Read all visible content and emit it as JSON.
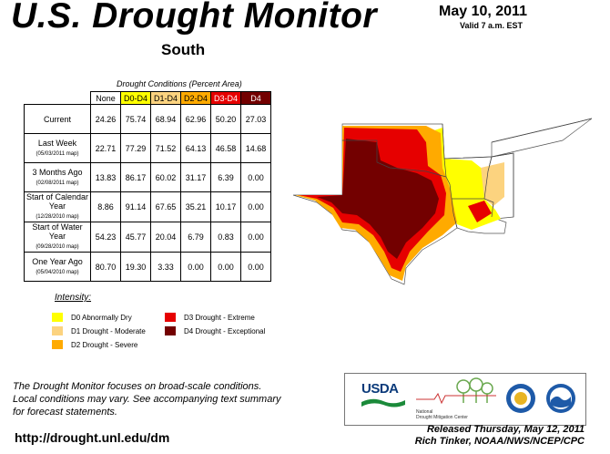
{
  "header": {
    "title": "U.S. Drought Monitor",
    "region": "South",
    "date": "May 10, 2011",
    "valid": "Valid 7 a.m. EST"
  },
  "table": {
    "caption": "Drought Conditions (Percent Area)",
    "columns": [
      "None",
      "D0-D4",
      "D1-D4",
      "D2-D4",
      "D3-D4",
      "D4"
    ],
    "column_colors": [
      "#ffffff",
      "#ffff00",
      "#fcd37f",
      "#ffaa00",
      "#e60000",
      "#730000"
    ],
    "rows": [
      {
        "label": "Current",
        "sub": "",
        "values": [
          "24.26",
          "75.74",
          "68.94",
          "62.96",
          "50.20",
          "27.03"
        ]
      },
      {
        "label": "Last Week",
        "sub": "(05/03/2011 map)",
        "values": [
          "22.71",
          "77.29",
          "71.52",
          "64.13",
          "46.58",
          "14.68"
        ]
      },
      {
        "label": "3 Months Ago",
        "sub": "(02/08/2011 map)",
        "values": [
          "13.83",
          "86.17",
          "60.02",
          "31.17",
          "6.39",
          "0.00"
        ]
      },
      {
        "label": "Start of Calendar Year",
        "sub": "(12/28/2010 map)",
        "values": [
          "8.86",
          "91.14",
          "67.65",
          "35.21",
          "10.17",
          "0.00"
        ]
      },
      {
        "label": "Start of Water Year",
        "sub": "(09/28/2010 map)",
        "values": [
          "54.23",
          "45.77",
          "20.04",
          "6.79",
          "0.83",
          "0.00"
        ]
      },
      {
        "label": "One Year Ago",
        "sub": "(05/04/2010 map)",
        "values": [
          "80.70",
          "19.30",
          "3.33",
          "0.00",
          "0.00",
          "0.00"
        ]
      }
    ]
  },
  "legend": {
    "title": "Intensity:",
    "items": [
      {
        "label": "D0 Abnormally Dry",
        "color": "#ffff00"
      },
      {
        "label": "D1 Drought - Moderate",
        "color": "#fcd37f"
      },
      {
        "label": "D2 Drought - Severe",
        "color": "#ffaa00"
      },
      {
        "label": "D3 Drought - Extreme",
        "color": "#e60000"
      },
      {
        "label": "D4 Drought - Exceptional",
        "color": "#730000"
      }
    ]
  },
  "note": {
    "line1": "The Drought Monitor focuses on broad-scale conditions.",
    "line2": "Local conditions may vary. See accompanying text summary",
    "line3": "for forecast statements."
  },
  "footer": {
    "url": "http://drought.unl.edu/dm",
    "released": "Released Thursday, May 12, 2011",
    "author": "Rich Tinker, NOAA/NWS/NCEP/CPC"
  },
  "logos": {
    "usda": "USDA",
    "ndmc_line1": "National",
    "ndmc_line2": "Drought Mitigation Center"
  }
}
